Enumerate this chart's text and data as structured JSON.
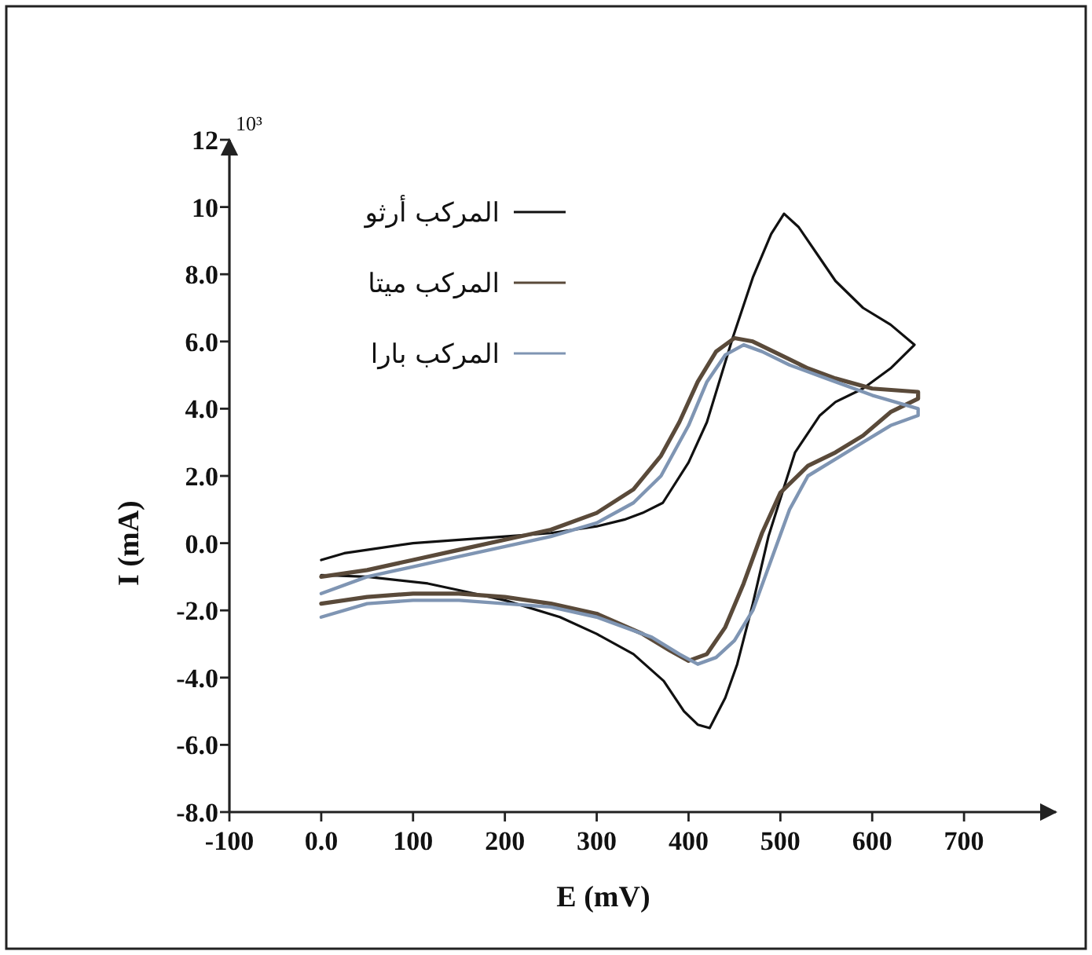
{
  "chart_data": {
    "type": "line",
    "xlabel": "E (mV)",
    "ylabel": "I (mA)",
    "annotations": [
      "10³"
    ],
    "xlim": [
      -100,
      800
    ],
    "ylim": [
      -8,
      12
    ],
    "xticks": [
      -100,
      {
        "value": 0,
        "label": "0.0"
      },
      100,
      200,
      300,
      400,
      500,
      600,
      700
    ],
    "yticks": [
      {
        "value": -8,
        "label": "-8.0"
      },
      {
        "value": -6,
        "label": "-6.0"
      },
      {
        "value": -4,
        "label": "-4.0"
      },
      {
        "value": -2,
        "label": "-2.0"
      },
      {
        "value": 0,
        "label": "0.0"
      },
      {
        "value": 2,
        "label": "2.0"
      },
      {
        "value": 4,
        "label": "4.0"
      },
      {
        "value": 6,
        "label": "6.0"
      },
      {
        "value": 8,
        "label": "8.0"
      },
      10,
      12
    ],
    "grid": false,
    "legend": "top left",
    "marker": "none",
    "line_style": "solid",
    "series": [
      {
        "name": "المركب أرثو",
        "color": "#111111",
        "x": [
          0,
          25,
          50,
          100,
          150,
          200,
          250,
          300,
          330,
          350,
          372,
          400,
          420,
          448,
          470,
          490,
          504,
          520,
          540,
          560,
          590,
          620,
          646,
          620,
          590,
          560,
          543,
          516,
          487,
          470,
          453,
          440,
          423,
          410,
          395,
          373,
          340,
          300,
          260,
          200,
          150,
          116,
          50,
          0
        ],
        "values": [
          -0.5,
          -0.3,
          -0.2,
          0.0,
          0.1,
          0.2,
          0.3,
          0.5,
          0.7,
          0.9,
          1.2,
          2.4,
          3.6,
          6.1,
          7.9,
          9.2,
          9.8,
          9.4,
          8.6,
          7.8,
          7.0,
          6.5,
          5.9,
          5.2,
          4.6,
          4.2,
          3.8,
          2.7,
          0.2,
          -1.8,
          -3.6,
          -4.6,
          -5.5,
          -5.4,
          -5.0,
          -4.1,
          -3.3,
          -2.7,
          -2.2,
          -1.7,
          -1.4,
          -1.2,
          -1.0,
          -0.95
        ]
      },
      {
        "name": "المركب ميتا",
        "color": "#5a4a3a",
        "x": [
          0,
          50,
          100,
          150,
          200,
          250,
          300,
          340,
          370,
          390,
          410,
          430,
          450,
          470,
          500,
          530,
          560,
          600,
          650,
          650,
          620,
          590,
          560,
          530,
          500,
          480,
          460,
          440,
          420,
          400,
          380,
          350,
          300,
          250,
          200,
          150,
          100,
          50,
          0
        ],
        "values": [
          -1.0,
          -0.8,
          -0.5,
          -0.2,
          0.1,
          0.4,
          0.9,
          1.6,
          2.6,
          3.6,
          4.8,
          5.7,
          6.1,
          6.0,
          5.6,
          5.2,
          4.9,
          4.6,
          4.5,
          4.3,
          3.9,
          3.2,
          2.7,
          2.3,
          1.5,
          0.3,
          -1.2,
          -2.5,
          -3.3,
          -3.5,
          -3.2,
          -2.7,
          -2.1,
          -1.8,
          -1.6,
          -1.5,
          -1.5,
          -1.6,
          -1.8
        ]
      },
      {
        "name": "المركب بارا",
        "color": "#7f95b3",
        "x": [
          0,
          50,
          100,
          150,
          200,
          250,
          300,
          340,
          370,
          400,
          420,
          440,
          460,
          480,
          510,
          550,
          600,
          650,
          650,
          620,
          590,
          560,
          530,
          510,
          490,
          470,
          450,
          430,
          410,
          390,
          360,
          300,
          250,
          200,
          150,
          100,
          50,
          0
        ],
        "values": [
          -1.5,
          -1.0,
          -0.7,
          -0.4,
          -0.1,
          0.2,
          0.6,
          1.2,
          2.0,
          3.5,
          4.8,
          5.6,
          5.9,
          5.7,
          5.3,
          4.9,
          4.4,
          4.0,
          3.8,
          3.5,
          3.0,
          2.5,
          2.0,
          1.0,
          -0.5,
          -2.0,
          -2.9,
          -3.4,
          -3.6,
          -3.3,
          -2.8,
          -2.2,
          -1.9,
          -1.8,
          -1.7,
          -1.7,
          -1.8,
          -2.2
        ]
      }
    ]
  }
}
